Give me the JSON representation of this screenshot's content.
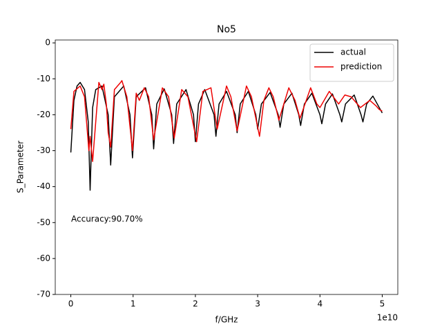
{
  "chart_data": {
    "type": "line",
    "title": "No5",
    "xlabel": "f/GHz",
    "ylabel": "S_Parameter",
    "x_offset_label": "1e10",
    "annotation": "Accuracy:90.70%",
    "xlim": [
      -2500000000.0,
      52500000000.0
    ],
    "ylim": [
      -70,
      0.8
    ],
    "xticks": [
      0,
      {
        "value": 10000000000.0,
        "label": "1"
      },
      {
        "value": 20000000000.0,
        "label": "2"
      },
      {
        "value": 30000000000.0,
        "label": "3"
      },
      {
        "value": 40000000000.0,
        "label": "4"
      },
      {
        "value": 50000000000.0,
        "label": "5"
      }
    ],
    "yticks": [
      -70,
      -60,
      -50,
      -40,
      -30,
      -20,
      -10,
      0
    ],
    "legend": "upper right",
    "series": [
      {
        "name": "actual",
        "color": "#000000",
        "x": [
          0,
          500000000.0,
          1000000000.0,
          1500000000.0,
          2200000000.0,
          2800000000.0,
          3100000000.0,
          3500000000.0,
          4000000000.0,
          5000000000.0,
          6000000000.0,
          6400000000.0,
          7000000000.0,
          8500000000.0,
          9500000000.0,
          9900000000.0,
          10500000000.0,
          12000000000.0,
          13000000000.0,
          13300000000.0,
          13800000000.0,
          15000000000.0,
          16200000000.0,
          16500000000.0,
          17000000000.0,
          18500000000.0,
          19700000000.0,
          20000000000.0,
          20500000000.0,
          21500000000.0,
          23000000000.0,
          23300000000.0,
          23800000000.0,
          25000000000.0,
          26400000000.0,
          26700000000.0,
          27200000000.0,
          28500000000.0,
          29700000000.0,
          30000000000.0,
          30600000000.0,
          32000000000.0,
          33300000000.0,
          33600000000.0,
          34200000000.0,
          35500000000.0,
          36600000000.0,
          36900000000.0,
          37500000000.0,
          38700000000.0,
          40000000000.0,
          40300000000.0,
          40900000000.0,
          42000000000.0,
          43200000000.0,
          43500000000.0,
          44100000000.0,
          45500000000.0,
          46600000000.0,
          46900000000.0,
          47500000000.0,
          48500000000.0,
          50000000000.0
        ],
        "values": [
          -30.5,
          -16,
          -12,
          -11,
          -13,
          -22,
          -41,
          -18,
          -13,
          -12,
          -20,
          -34,
          -15,
          -12,
          -20,
          -32,
          -15,
          -12.5,
          -20,
          -29.5,
          -17,
          -12.8,
          -20,
          -28,
          -17,
          -13,
          -20,
          -27.5,
          -17,
          -13,
          -20,
          -26,
          -17,
          -13.5,
          -20,
          -25,
          -17,
          -13.5,
          -20,
          -24,
          -17,
          -13.8,
          -20,
          -23.5,
          -17,
          -14,
          -20,
          -23,
          -17,
          -14,
          -20,
          -22.5,
          -17,
          -14.2,
          -20,
          -22,
          -17,
          -14.5,
          -20,
          -22,
          -17,
          -14.8,
          -19.5
        ]
      },
      {
        "name": "prediction",
        "color": "#ee0000",
        "x": [
          0,
          500000000.0,
          1500000000.0,
          2200000000.0,
          2900000000.0,
          3100000000.0,
          3500000000.0,
          4500000000.0,
          5000000000.0,
          5300000000.0,
          5700000000.0,
          6000000000.0,
          6400000000.0,
          7000000000.0,
          8000000000.0,
          8200000000.0,
          9000000000.0,
          9900000000.0,
          10500000000.0,
          11000000000.0,
          11800000000.0,
          12500000000.0,
          13300000000.0,
          14700000000.0,
          15700000000.0,
          16600000000.0,
          17800000000.0,
          18800000000.0,
          20200000000.0,
          21200000000.0,
          22500000000.0,
          23500000000.0,
          25000000000.0,
          25700000000.0,
          26700000000.0,
          28200000000.0,
          29000000000.0,
          30300000000.0,
          31000000000.0,
          31800000000.0,
          32500000000.0,
          33400000000.0,
          35000000000.0,
          36000000000.0,
          36800000000.0,
          38500000000.0,
          39500000000.0,
          40000000000.0,
          41000000000.0,
          41500000000.0,
          43000000000.0,
          44000000000.0,
          45000000000.0,
          46500000000.0,
          48000000000.0,
          49000000000.0,
          49500000000.0,
          50000000000.0
        ],
        "values": [
          -24,
          -13.5,
          -12,
          -15,
          -30,
          -26,
          -33,
          -11,
          -13,
          -11.5,
          -17,
          -25,
          -29,
          -13,
          -11,
          -10.5,
          -15,
          -30,
          -14,
          -16,
          -12.5,
          -15,
          -27,
          -12.5,
          -15,
          -26.5,
          -13,
          -15,
          -27.5,
          -13.5,
          -12.5,
          -24,
          -12,
          -15,
          -24.5,
          -12,
          -15,
          -26,
          -16,
          -12.5,
          -15,
          -21.5,
          -12.5,
          -16,
          -21,
          -12.5,
          -17,
          -18,
          -15,
          -13.5,
          -17,
          -14.5,
          -15,
          -18,
          -16,
          -17.5,
          -18.5,
          -19
        ]
      }
    ]
  }
}
